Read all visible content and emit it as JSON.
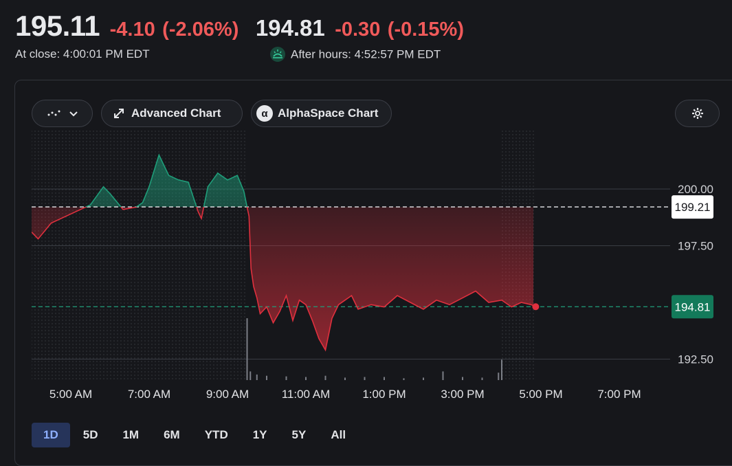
{
  "quote": {
    "close_price": "195.11",
    "close_change": "-4.10",
    "close_change_pct": "(-2.06%)",
    "close_label": "At close: 4:00:01 PM EDT",
    "after_price": "194.81",
    "after_change": "-0.30",
    "after_change_pct": "(-0.15%)",
    "after_label": "After hours: 4:52:57 PM EDT"
  },
  "toolbar": {
    "chart_type_icon": "chart-type-icon",
    "advanced_chart": "Advanced Chart",
    "alpha_badge": "α",
    "alphaspace_chart": "AlphaSpace Chart",
    "settings_icon": "gear-icon"
  },
  "colors": {
    "up": "#1f9e7a",
    "down": "#e0303e",
    "down_text": "#f05a5a",
    "last_price_bg": "#137a5a",
    "active_range_bg": "#26345a"
  },
  "chart_data": {
    "type": "line",
    "x_ticks": [
      "5:00 AM",
      "7:00 AM",
      "9:00 AM",
      "11:00 AM",
      "1:00 PM",
      "3:00 PM",
      "5:00 PM",
      "7:00 PM"
    ],
    "y_ticks": [
      "200.00",
      "197.50",
      "192.50"
    ],
    "ylim": [
      192.0,
      202.0
    ],
    "previous_close": 199.21,
    "previous_close_label": "199.21",
    "last_price": 194.81,
    "last_price_label": "194.81",
    "grid": "horizontal",
    "x": [
      "4:00 AM",
      "4:10 AM",
      "4:30 AM",
      "5:00 AM",
      "5:30 AM",
      "5:50 AM",
      "6:00 AM",
      "6:20 AM",
      "6:40 AM",
      "6:50 AM",
      "7:00 AM",
      "7:15 AM",
      "7:30 AM",
      "7:45 AM",
      "8:00 AM",
      "8:15 AM",
      "8:20 AM",
      "8:30 AM",
      "8:45 AM",
      "9:00 AM",
      "9:15 AM",
      "9:25 AM",
      "9:30 AM",
      "9:33 AM",
      "9:36 AM",
      "9:40 AM",
      "9:45 AM",
      "9:50 AM",
      "10:00 AM",
      "10:10 AM",
      "10:20 AM",
      "10:30 AM",
      "10:40 AM",
      "10:50 AM",
      "11:00 AM",
      "11:10 AM",
      "11:20 AM",
      "11:30 AM",
      "11:40 AM",
      "11:50 AM",
      "12:00 PM",
      "12:10 PM",
      "12:20 PM",
      "12:40 PM",
      "1:00 PM",
      "1:20 PM",
      "1:40 PM",
      "2:00 PM",
      "2:20 PM",
      "2:40 PM",
      "3:00 PM",
      "3:20 PM",
      "3:40 PM",
      "4:00 PM",
      "4:15 PM",
      "4:30 PM",
      "4:45 PM",
      "4:52 PM"
    ],
    "y": [
      198.1,
      197.8,
      198.5,
      198.9,
      199.3,
      200.1,
      199.8,
      199.1,
      199.2,
      199.4,
      200.1,
      201.5,
      200.6,
      200.4,
      200.3,
      199.0,
      198.7,
      200.1,
      200.7,
      200.4,
      200.6,
      199.9,
      199.2,
      198.8,
      196.5,
      195.7,
      195.2,
      194.5,
      194.8,
      194.1,
      194.6,
      195.3,
      194.2,
      195.1,
      194.9,
      194.2,
      193.4,
      192.9,
      194.3,
      194.9,
      195.1,
      195.3,
      194.7,
      194.9,
      194.8,
      195.3,
      195.0,
      194.7,
      195.1,
      194.9,
      195.2,
      195.5,
      195.0,
      195.1,
      194.8,
      195.0,
      194.9,
      194.81
    ],
    "volume": {
      "x": [
        "9:30 AM",
        "9:35 AM",
        "9:45 AM",
        "10:00 AM",
        "10:30 AM",
        "11:00 AM",
        "11:30 AM",
        "12:00 PM",
        "12:30 PM",
        "1:00 PM",
        "1:30 PM",
        "2:00 PM",
        "2:30 PM",
        "3:00 PM",
        "3:30 PM",
        "3:55 PM",
        "4:00 PM"
      ],
      "values": [
        1.0,
        0.14,
        0.09,
        0.07,
        0.06,
        0.05,
        0.07,
        0.04,
        0.05,
        0.05,
        0.03,
        0.04,
        0.14,
        0.05,
        0.04,
        0.12,
        0.33
      ]
    }
  },
  "ranges": [
    "1D",
    "5D",
    "1M",
    "6M",
    "YTD",
    "1Y",
    "5Y",
    "All"
  ],
  "active_range": "1D"
}
